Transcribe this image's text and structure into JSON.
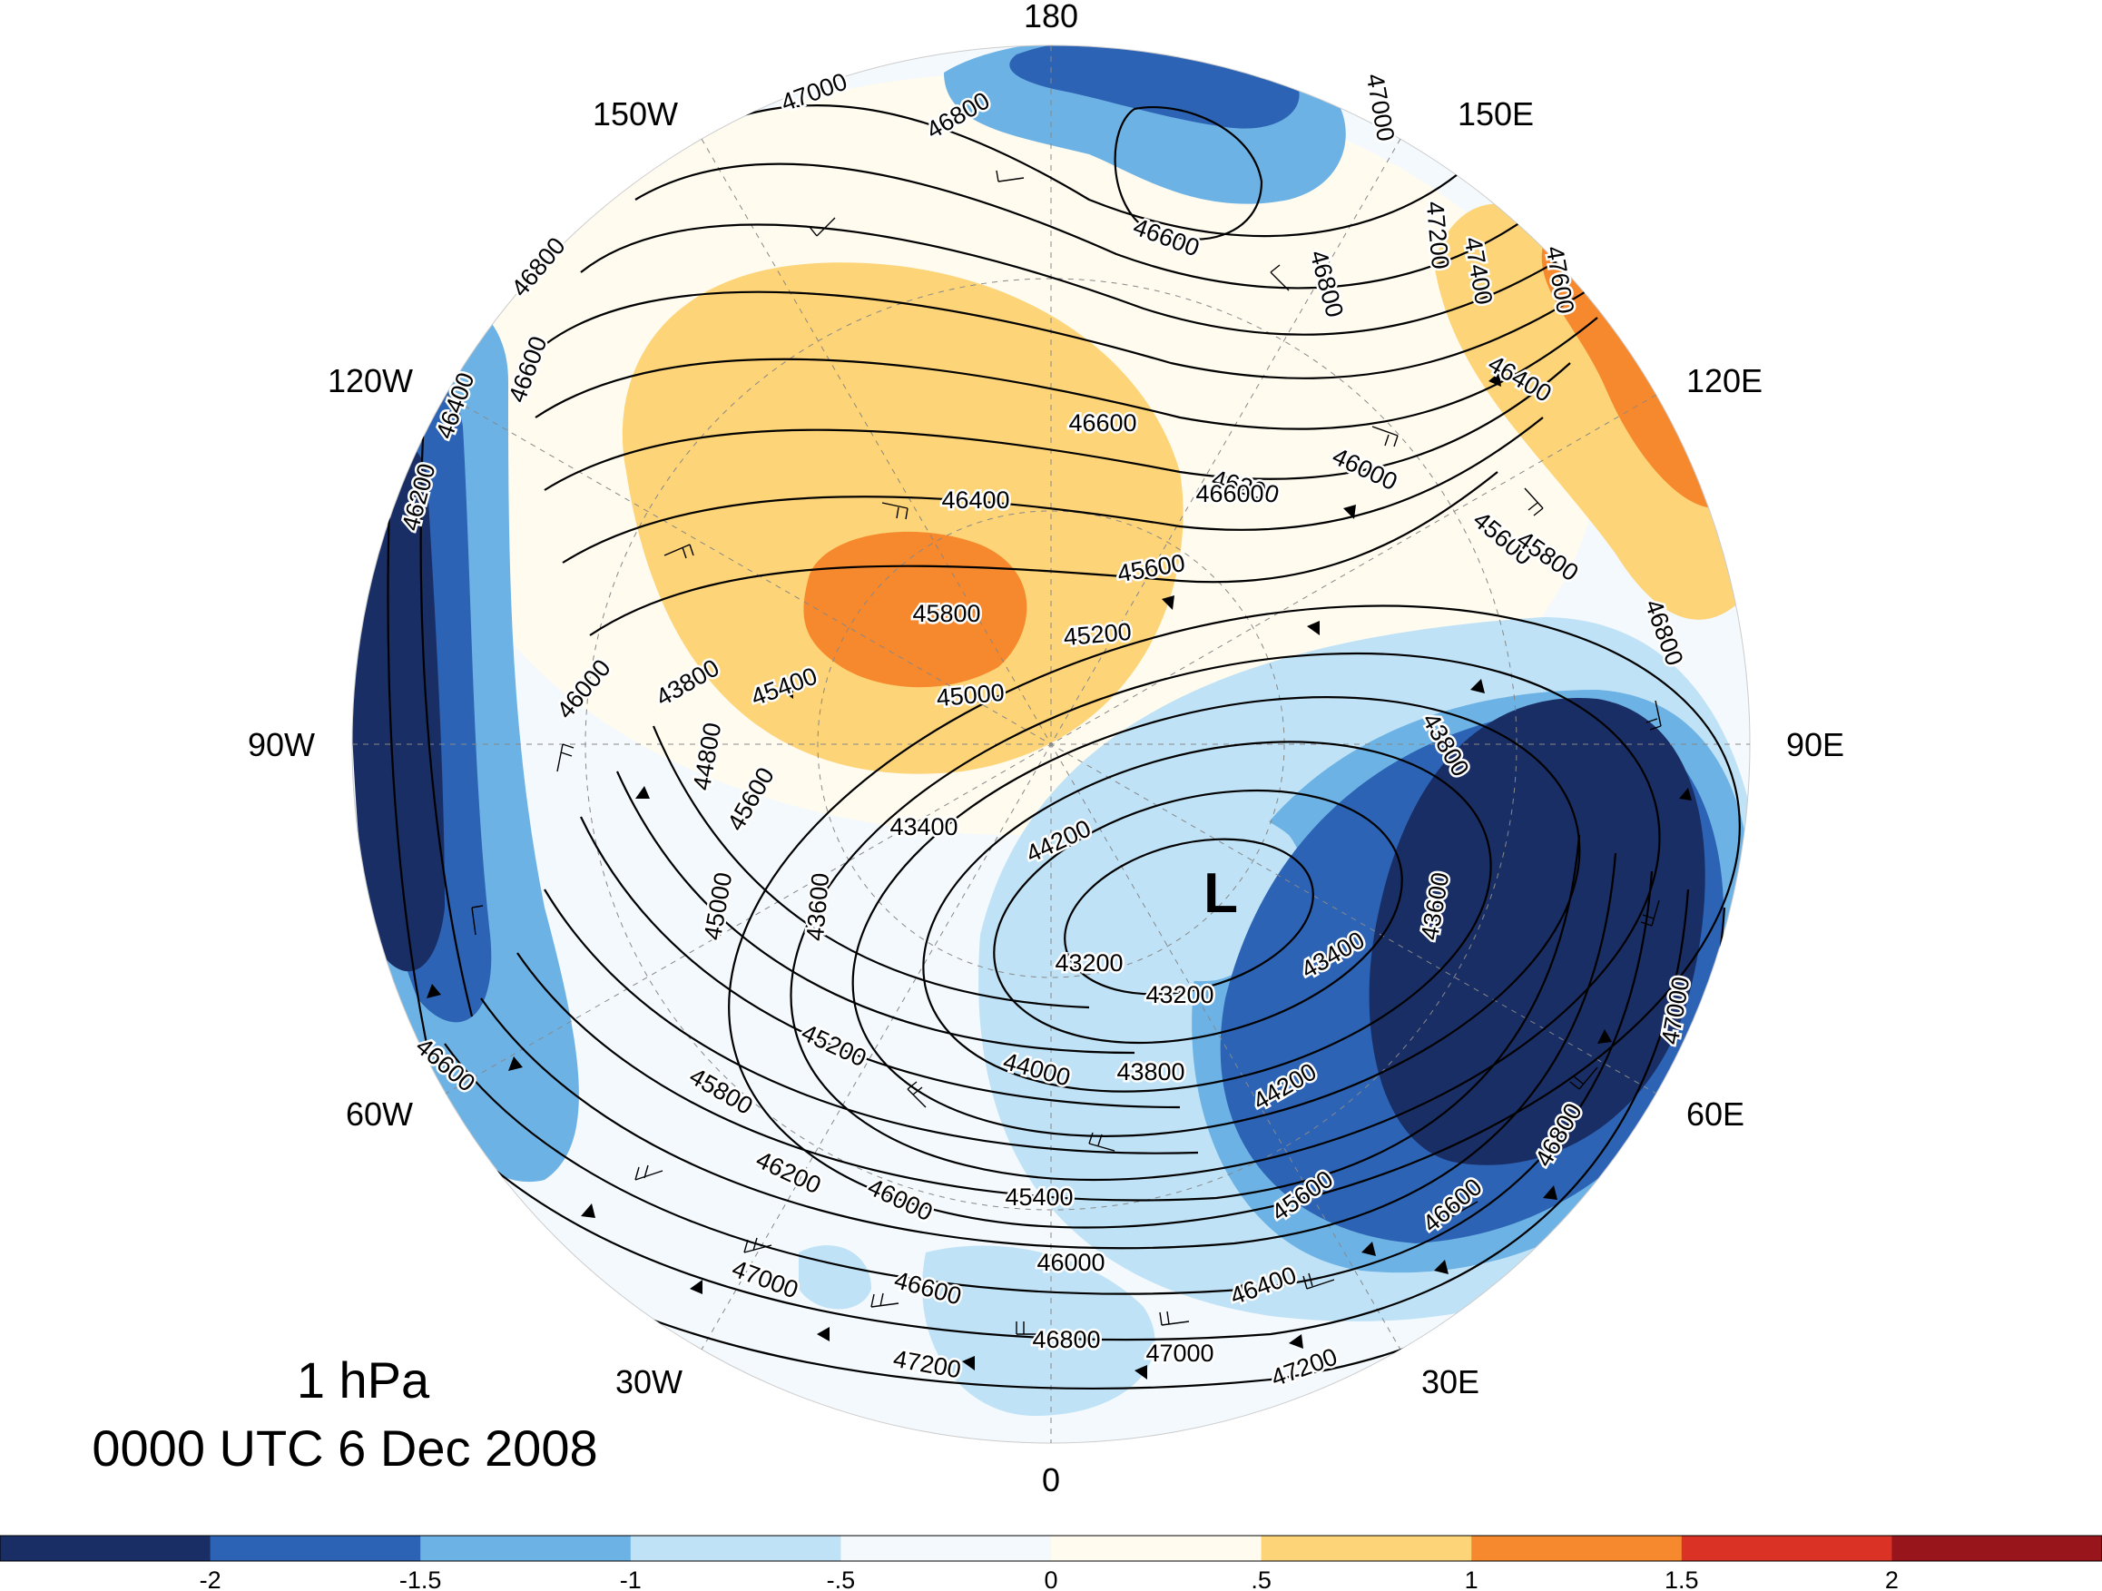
{
  "title": {
    "level": "1 hPa",
    "time": "0000 UTC 6 Dec 2008"
  },
  "longitude_labels": [
    "180",
    "150E",
    "120E",
    "90E",
    "60E",
    "30E",
    "0",
    "30W",
    "60W",
    "90W",
    "120W",
    "150W"
  ],
  "low_marker": "L",
  "contour_labels": [
    "47000",
    "46800",
    "47000",
    "46600",
    "46800",
    "47200",
    "47400",
    "47600",
    "46800",
    "46600",
    "46400",
    "46200",
    "46600",
    "46400",
    "46000",
    "45600",
    "46200",
    "46400",
    "46600",
    "45800",
    "45600",
    "45200",
    "46800",
    "45000",
    "46000",
    "45800",
    "45400",
    "44800",
    "45600",
    "43800",
    "43400",
    "45000",
    "44200",
    "43600",
    "43600",
    "43200",
    "43800",
    "43200",
    "43400",
    "47000",
    "46600",
    "45200",
    "44000",
    "43800",
    "44200",
    "46800",
    "45800",
    "46200",
    "46000",
    "45400",
    "45600",
    "46600",
    "47000",
    "46600",
    "46000",
    "46400",
    "46800",
    "47000",
    "47200",
    "47200"
  ],
  "colorbar": {
    "labels": [
      "-2",
      "-1.5",
      "-1",
      "-.5",
      "0",
      ".5",
      "1",
      "1.5",
      "2"
    ],
    "colors": [
      "#1a2e66",
      "#2c63b4",
      "#6db2e4",
      "#bfe2f6",
      "#f3f9fd",
      "#fffbef",
      "#fdd477",
      "#f6892e",
      "#da3225",
      "#98151c"
    ]
  },
  "anomaly_colors": {
    "deep_neg": "#1a2e66",
    "neg": "#2c63b4",
    "mid_neg": "#6db2e4",
    "light_neg": "#bfe2f6",
    "near_zero_neg": "#f3f9fd",
    "near_zero_pos": "#fffbef",
    "pos": "#fdd477",
    "strong_pos": "#f6892e"
  }
}
